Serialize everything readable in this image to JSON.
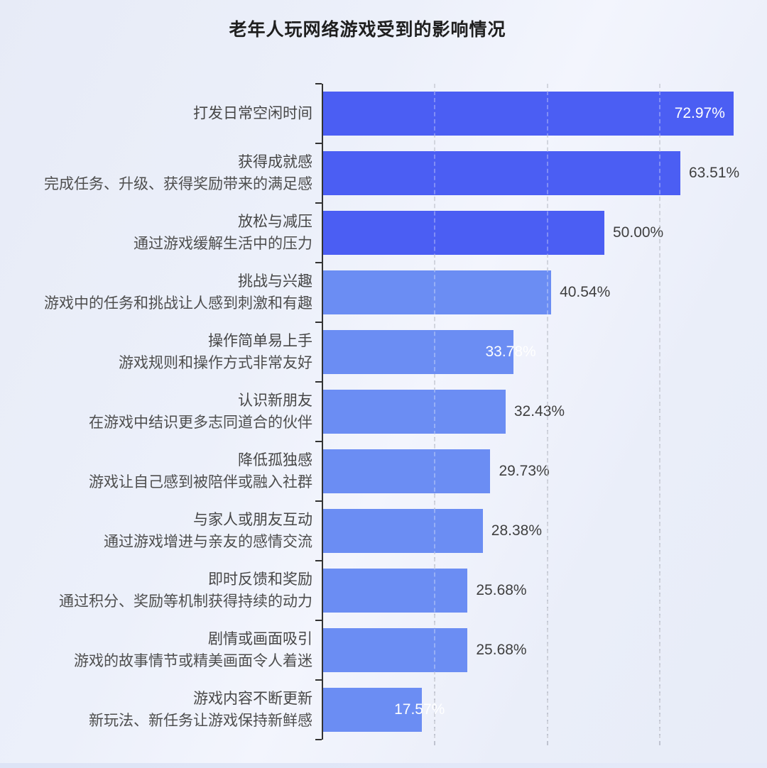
{
  "title": "老年人玩网络游戏受到的影响情况",
  "chart_data": {
    "type": "bar",
    "orientation": "horizontal",
    "title": "老年人玩网络游戏受到的影响情况",
    "value_unit": "%",
    "x_gridlines_pct": [
      20,
      40,
      60
    ],
    "x_max_pct": 73.5,
    "grid": "dashed-vertical",
    "legend": "none",
    "colors": {
      "bar_high": "#4B5EF3",
      "bar_low": "#6B8DF3",
      "axis": "#333333",
      "gridline": "#bfc3d0",
      "title_text": "#1F1F1F",
      "category_text": "#464646",
      "category_subtext": "#4E4E4E",
      "value_text_outside": "#3F3F3F",
      "value_text_inside": "#FFFFFF"
    },
    "bars": [
      {
        "label": "打发日常空闲时间",
        "sublabel": "",
        "value": 72.97,
        "display": "72.97%",
        "tone": "high",
        "value_label_position": "inside"
      },
      {
        "label": "获得成就感",
        "sublabel": "完成任务、升级、获得奖励带来的满足感",
        "value": 63.51,
        "display": "63.51%",
        "tone": "high",
        "value_label_position": "outside"
      },
      {
        "label": "放松与减压",
        "sublabel": "通过游戏缓解生活中的压力",
        "value": 50.0,
        "display": "50.00%",
        "tone": "high",
        "value_label_position": "outside"
      },
      {
        "label": "挑战与兴趣",
        "sublabel": "游戏中的任务和挑战让人感到刺激和有趣",
        "value": 40.54,
        "display": "40.54%",
        "tone": "low",
        "value_label_position": "outside"
      },
      {
        "label": "操作简单易上手",
        "sublabel": "游戏规则和操作方式非常友好",
        "value": 33.78,
        "display": "33.78%",
        "tone": "low",
        "value_label_position": "straddle"
      },
      {
        "label": "认识新朋友",
        "sublabel": "在游戏中结识更多志同道合的伙伴",
        "value": 32.43,
        "display": "32.43%",
        "tone": "low",
        "value_label_position": "outside"
      },
      {
        "label": "降低孤独感",
        "sublabel": "游戏让自己感到被陪伴或融入社群",
        "value": 29.73,
        "display": "29.73%",
        "tone": "low",
        "value_label_position": "outside"
      },
      {
        "label": "与家人或朋友互动",
        "sublabel": "通过游戏增进与亲友的感情交流",
        "value": 28.38,
        "display": "28.38%",
        "tone": "low",
        "value_label_position": "outside"
      },
      {
        "label": "即时反馈和奖励",
        "sublabel": "通过积分、奖励等机制获得持续的动力",
        "value": 25.68,
        "display": "25.68%",
        "tone": "low",
        "value_label_position": "outside"
      },
      {
        "label": "剧情或画面吸引",
        "sublabel": "游戏的故事情节或精美画面令人着迷",
        "value": 25.68,
        "display": "25.68%",
        "tone": "low",
        "value_label_position": "outside"
      },
      {
        "label": "游戏内容不断更新",
        "sublabel": "新玩法、新任务让游戏保持新鲜感",
        "value": 17.57,
        "display": "17.57%",
        "tone": "low",
        "value_label_position": "straddle"
      }
    ]
  }
}
